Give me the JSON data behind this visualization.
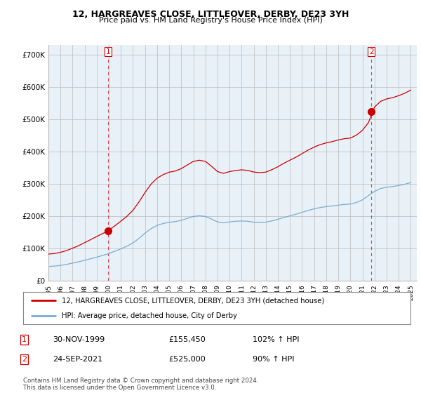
{
  "title": "12, HARGREAVES CLOSE, LITTLEOVER, DERBY, DE23 3YH",
  "subtitle": "Price paid vs. HM Land Registry's House Price Index (HPI)",
  "ylim": [
    0,
    730000
  ],
  "xlim_start": 1995.0,
  "xlim_end": 2025.5,
  "yticks": [
    0,
    100000,
    200000,
    300000,
    400000,
    500000,
    600000,
    700000
  ],
  "ytick_labels": [
    "£0",
    "£100K",
    "£200K",
    "£300K",
    "£400K",
    "£500K",
    "£600K",
    "£700K"
  ],
  "legend_line1": "12, HARGREAVES CLOSE, LITTLEOVER, DERBY, DE23 3YH (detached house)",
  "legend_line2": "HPI: Average price, detached house, City of Derby",
  "sale1_date": 1999.917,
  "sale1_price": 155450,
  "sale2_date": 2021.731,
  "sale2_price": 525000,
  "table_data": [
    [
      "1",
      "30-NOV-1999",
      "£155,450",
      "102% ↑ HPI"
    ],
    [
      "2",
      "24-SEP-2021",
      "£525,000",
      "90% ↑ HPI"
    ]
  ],
  "footer": "Contains HM Land Registry data © Crown copyright and database right 2024.\nThis data is licensed under the Open Government Licence v3.0.",
  "red_color": "#cc0000",
  "blue_color": "#7aadcf",
  "grid_color": "#bbbbbb",
  "chart_bg": "#e8f0f8",
  "background_color": "#ffffff"
}
